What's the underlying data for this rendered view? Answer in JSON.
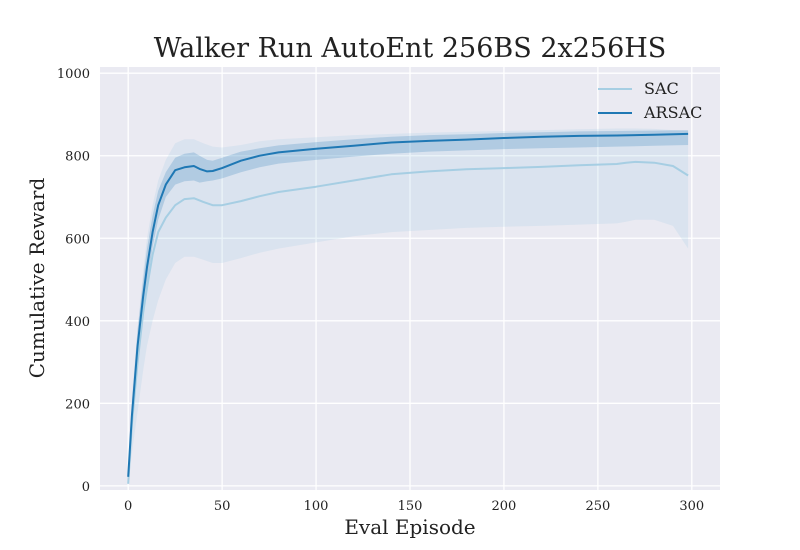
{
  "chart_data": {
    "type": "line",
    "title": "Walker Run AutoEnt 256BS 2x256HS",
    "xlabel": "Eval Episode",
    "ylabel": "Cumulative Reward",
    "xlim": [
      -15,
      315
    ],
    "ylim": [
      -10,
      1015
    ],
    "xticks": [
      0,
      50,
      100,
      150,
      200,
      250,
      300
    ],
    "yticks": [
      0,
      200,
      400,
      600,
      800,
      1000
    ],
    "grid": true,
    "legend_position": "top-right",
    "series": [
      {
        "name": "SAC",
        "color": "#a6cee3",
        "x": [
          0,
          2,
          5,
          8,
          10,
          13,
          16,
          20,
          25,
          30,
          35,
          40,
          45,
          50,
          60,
          70,
          80,
          100,
          120,
          140,
          160,
          180,
          200,
          220,
          240,
          260,
          265,
          270,
          280,
          290,
          298
        ],
        "y": [
          5,
          150,
          300,
          420,
          480,
          560,
          615,
          650,
          680,
          695,
          697,
          688,
          680,
          680,
          690,
          702,
          712,
          725,
          740,
          755,
          762,
          767,
          770,
          773,
          777,
          780,
          783,
          785,
          783,
          775,
          752
        ],
        "lower": [
          0,
          80,
          180,
          280,
          340,
          400,
          450,
          500,
          540,
          555,
          555,
          548,
          540,
          540,
          552,
          565,
          575,
          590,
          605,
          615,
          620,
          625,
          628,
          630,
          633,
          636,
          640,
          645,
          645,
          630,
          575
        ],
        "upper": [
          12,
          220,
          380,
          520,
          600,
          680,
          740,
          790,
          830,
          840,
          840,
          830,
          822,
          820,
          826,
          835,
          840,
          845,
          850,
          853,
          856,
          858,
          860,
          862,
          864,
          866,
          866,
          866,
          865,
          862,
          860
        ]
      },
      {
        "name": "ARSAC",
        "color": "#1f78b4",
        "x": [
          0,
          2,
          5,
          8,
          10,
          13,
          16,
          20,
          25,
          30,
          35,
          38,
          42,
          45,
          50,
          60,
          70,
          80,
          100,
          120,
          140,
          160,
          180,
          200,
          220,
          240,
          260,
          280,
          298
        ],
        "y": [
          22,
          170,
          340,
          460,
          530,
          615,
          680,
          730,
          765,
          772,
          775,
          768,
          762,
          763,
          770,
          788,
          800,
          808,
          817,
          824,
          832,
          836,
          839,
          843,
          846,
          848,
          849,
          851,
          853
        ],
        "lower": [
          15,
          140,
          300,
          420,
          490,
          580,
          645,
          700,
          730,
          738,
          740,
          735,
          738,
          740,
          745,
          760,
          772,
          781,
          790,
          798,
          805,
          810,
          813,
          816,
          818,
          820,
          822,
          824,
          826
        ],
        "upper": [
          30,
          200,
          380,
          500,
          575,
          655,
          715,
          760,
          795,
          805,
          808,
          800,
          790,
          788,
          795,
          810,
          818,
          825,
          833,
          840,
          846,
          850,
          852,
          855,
          857,
          859,
          860,
          861,
          862
        ]
      }
    ]
  }
}
